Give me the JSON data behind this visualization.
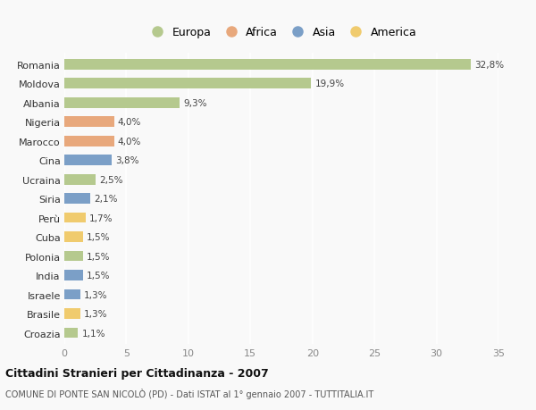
{
  "countries": [
    "Romania",
    "Moldova",
    "Albania",
    "Nigeria",
    "Marocco",
    "Cina",
    "Ucraina",
    "Siria",
    "Perù",
    "Cuba",
    "Polonia",
    "India",
    "Israele",
    "Brasile",
    "Croazia"
  ],
  "values": [
    32.8,
    19.9,
    9.3,
    4.0,
    4.0,
    3.8,
    2.5,
    2.1,
    1.7,
    1.5,
    1.5,
    1.5,
    1.3,
    1.3,
    1.1
  ],
  "labels": [
    "32,8%",
    "19,9%",
    "9,3%",
    "4,0%",
    "4,0%",
    "3,8%",
    "2,5%",
    "2,1%",
    "1,7%",
    "1,5%",
    "1,5%",
    "1,5%",
    "1,3%",
    "1,3%",
    "1,1%"
  ],
  "continents": [
    "Europa",
    "Europa",
    "Europa",
    "Africa",
    "Africa",
    "Asia",
    "Europa",
    "Asia",
    "America",
    "America",
    "Europa",
    "Asia",
    "Asia",
    "America",
    "Europa"
  ],
  "colors": {
    "Europa": "#b5c98e",
    "Africa": "#e8a87c",
    "Asia": "#7b9fc7",
    "America": "#f0cb6e"
  },
  "title": "Cittadini Stranieri per Cittadinanza - 2007",
  "subtitle": "COMUNE DI PONTE SAN NICOLÒ (PD) - Dati ISTAT al 1° gennaio 2007 - TUTTITALIA.IT",
  "xlim": [
    0,
    35
  ],
  "xticks": [
    0,
    5,
    10,
    15,
    20,
    25,
    30,
    35
  ],
  "background_color": "#f9f9f9",
  "grid_color": "#ffffff"
}
